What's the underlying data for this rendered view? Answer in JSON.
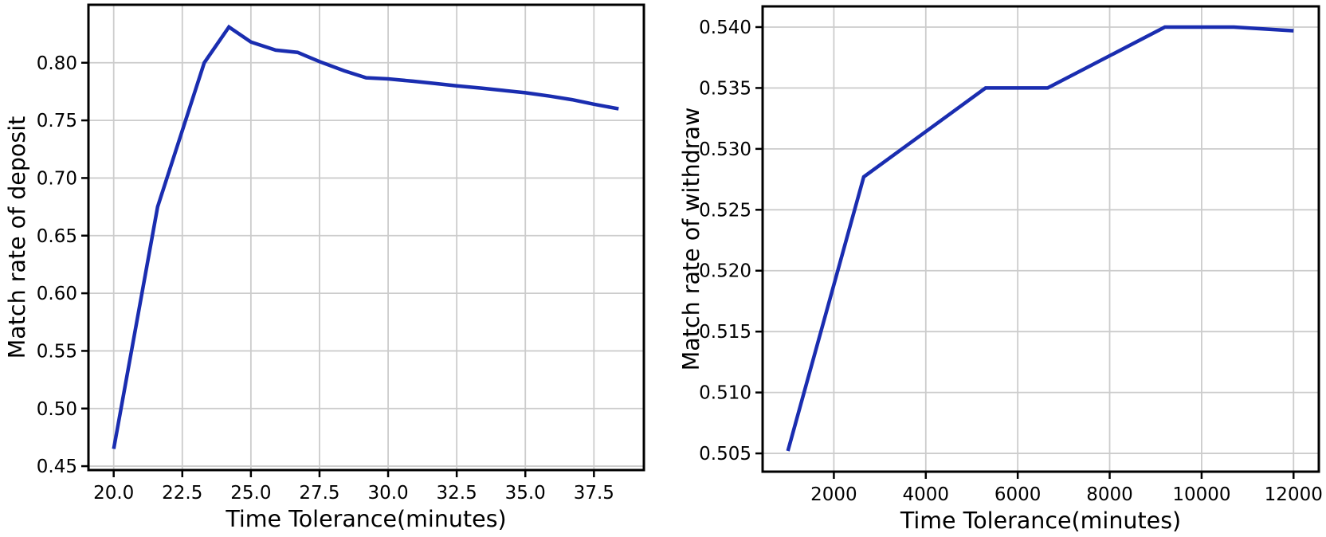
{
  "theme": {
    "background": "#ffffff",
    "line_color": "#1a2db0",
    "grid_color": "#cccccc",
    "spine_color": "#000000",
    "text_color": "#000000"
  },
  "chart_data": [
    {
      "type": "line",
      "name": "deposit",
      "title": "",
      "xlabel": "Time Tolerance(minutes)",
      "ylabel": "Match rate of deposit",
      "grid": true,
      "legend_position": "none",
      "xlim": [
        19.08,
        39.32
      ],
      "ylim": [
        0.4466,
        0.8503
      ],
      "xtick_values": [
        20.0,
        22.5,
        25.0,
        27.5,
        30.0,
        32.5,
        35.0,
        37.5
      ],
      "xtick_labels": [
        "20.0",
        "22.5",
        "25.0",
        "27.5",
        "30.0",
        "32.5",
        "35.0",
        "37.5"
      ],
      "ytick_values": [
        0.45,
        0.5,
        0.55,
        0.6,
        0.65,
        0.7,
        0.75,
        0.8
      ],
      "ytick_labels": [
        "0.45",
        "0.50",
        "0.55",
        "0.60",
        "0.65",
        "0.70",
        "0.75",
        "0.80"
      ],
      "x": [
        20.0,
        21.6,
        23.3,
        24.2,
        25.0,
        25.9,
        26.7,
        27.5,
        28.4,
        29.2,
        30.0,
        30.9,
        31.7,
        32.5,
        33.4,
        34.2,
        35.0,
        35.9,
        36.7,
        37.5,
        38.4
      ],
      "y": [
        0.465,
        0.675,
        0.8,
        0.831,
        0.818,
        0.811,
        0.809,
        0.801,
        0.793,
        0.787,
        0.786,
        0.784,
        0.782,
        0.78,
        0.778,
        0.776,
        0.774,
        0.771,
        0.768,
        0.764,
        0.76
      ]
    },
    {
      "type": "line",
      "name": "withdraw",
      "title": "",
      "xlabel": "Time Tolerance(minutes)",
      "ylabel": "Match rate of withdraw",
      "grid": true,
      "legend_position": "none",
      "xlim": [
        450,
        12550
      ],
      "ylim": [
        0.5035,
        0.5417
      ],
      "xtick_values": [
        2000,
        4000,
        6000,
        8000,
        10000,
        12000
      ],
      "xtick_labels": [
        "2000",
        "4000",
        "6000",
        "8000",
        "10000",
        "12000"
      ],
      "ytick_values": [
        0.505,
        0.51,
        0.515,
        0.52,
        0.525,
        0.53,
        0.535,
        0.54
      ],
      "ytick_labels": [
        "0.505",
        "0.510",
        "0.515",
        "0.520",
        "0.525",
        "0.530",
        "0.535",
        "0.540"
      ],
      "x": [
        1000,
        2650,
        5300,
        6650,
        9200,
        10700,
        12000
      ],
      "y": [
        0.5052,
        0.5277,
        0.535,
        0.535,
        0.54,
        0.54,
        0.5397
      ]
    }
  ]
}
